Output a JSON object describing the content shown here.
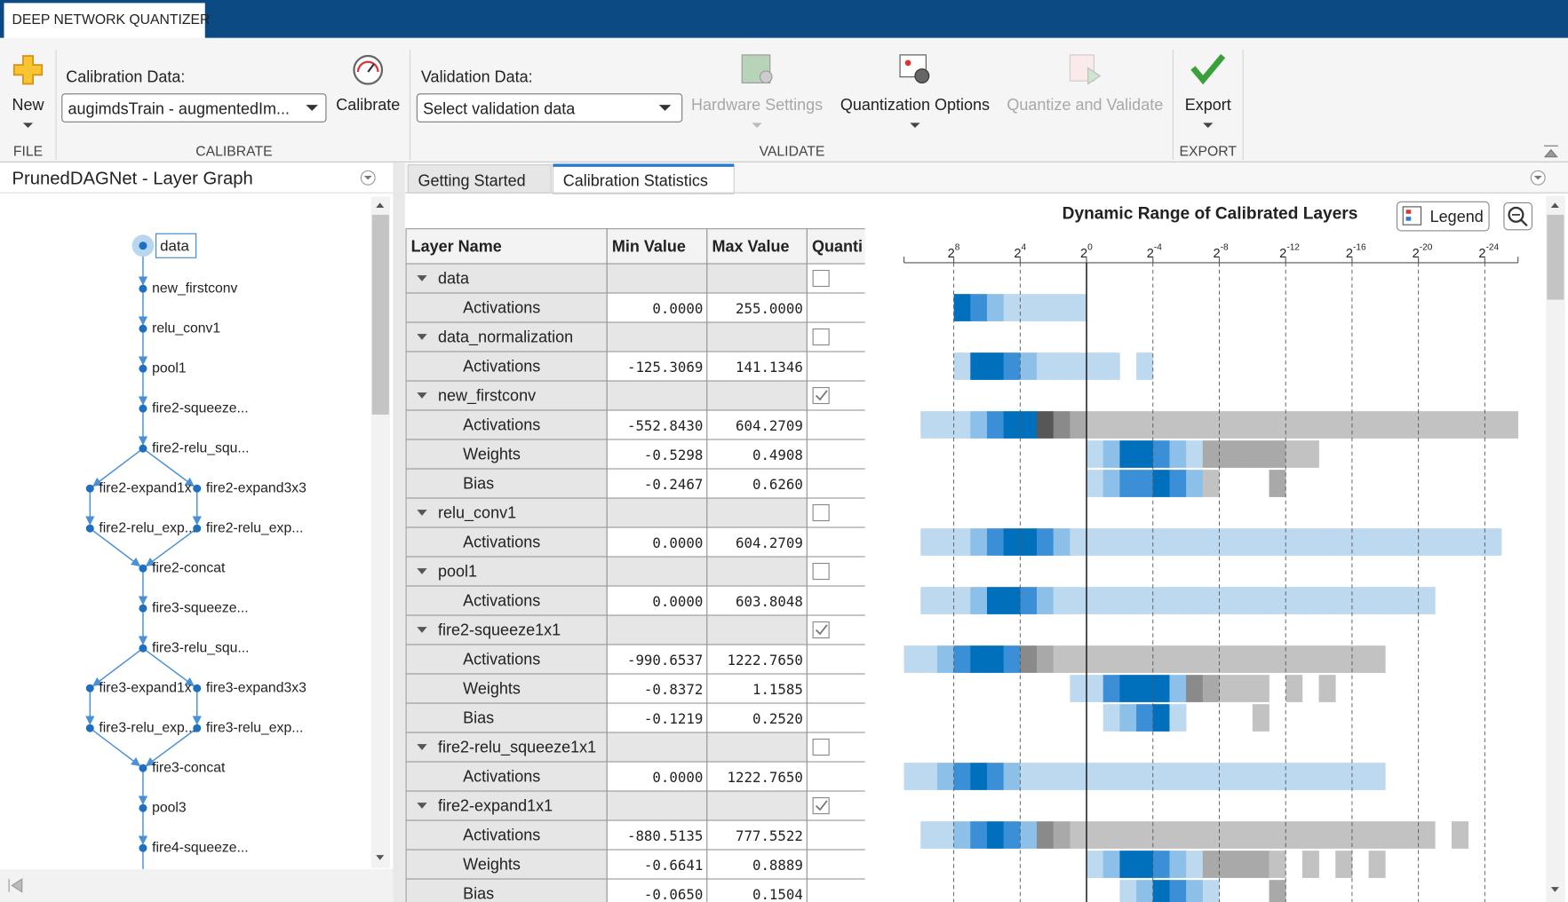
{
  "app_tab": "DEEP NETWORK QUANTIZER",
  "toolbar": {
    "new": "New",
    "calibration_data_label": "Calibration Data:",
    "calibration_data_value": "augimdsTrain - augmentedIm...",
    "calibrate": "Calibrate",
    "validation_data_label": "Validation Data:",
    "validation_data_value": "Select validation data",
    "hardware_settings": "Hardware Settings",
    "quantization_options": "Quantization Options",
    "quantize_and_validate": "Quantize and Validate",
    "export": "Export",
    "sections": [
      "FILE",
      "CALIBRATE",
      "VALIDATE",
      "EXPORT"
    ]
  },
  "layer_graph": {
    "title": "PrunedDAGNet - Layer Graph",
    "nodes": [
      "data",
      "new_firstconv",
      "relu_conv1",
      "pool1",
      "fire2-squeeze...",
      "fire2-relu_squ...",
      "fire2-expand1x",
      "fire2-expand3x3",
      "fire2-relu_exp...",
      "fire2-relu_exp...",
      "fire2-concat",
      "fire3-squeeze...",
      "fire3-relu_squ...",
      "fire3-expand1x",
      "fire3-expand3x3",
      "fire3-relu_exp...",
      "fire3-relu_exp...",
      "fire3-concat",
      "pool3",
      "fire4-squeeze..."
    ]
  },
  "tabs": [
    "Getting Started",
    "Calibration Statistics"
  ],
  "table": {
    "columns": [
      "Layer Name",
      "Min Value",
      "Max Value",
      "Quanti"
    ],
    "rows": [
      {
        "name": "data",
        "quantize": false
      },
      {
        "name": "Activations",
        "min": "0.0000",
        "max": "255.0000"
      },
      {
        "name": "data_normalization",
        "quantize": false
      },
      {
        "name": "Activations",
        "min": "-125.3069",
        "max": "141.1346"
      },
      {
        "name": "new_firstconv",
        "quantize": true
      },
      {
        "name": "Activations",
        "min": "-552.8430",
        "max": "604.2709"
      },
      {
        "name": "Weights",
        "min": "-0.5298",
        "max": "0.4908"
      },
      {
        "name": "Bias",
        "min": "-0.2467",
        "max": "0.6260"
      },
      {
        "name": "relu_conv1",
        "quantize": false
      },
      {
        "name": "Activations",
        "min": "0.0000",
        "max": "604.2709"
      },
      {
        "name": "pool1",
        "quantize": false
      },
      {
        "name": "Activations",
        "min": "0.0000",
        "max": "603.8048"
      },
      {
        "name": "fire2-squeeze1x1",
        "quantize": true
      },
      {
        "name": "Activations",
        "min": "-990.6537",
        "max": "1222.7650"
      },
      {
        "name": "Weights",
        "min": "-0.8372",
        "max": "1.1585"
      },
      {
        "name": "Bias",
        "min": "-0.1219",
        "max": "0.2520"
      },
      {
        "name": "fire2-relu_squeeze1x1",
        "quantize": false
      },
      {
        "name": "Activations",
        "min": "0.0000",
        "max": "1222.7650"
      },
      {
        "name": "fire2-expand1x1",
        "quantize": true
      },
      {
        "name": "Activations",
        "min": "-880.5135",
        "max": "777.5522"
      },
      {
        "name": "Weights",
        "min": "-0.6641",
        "max": "0.8889"
      },
      {
        "name": "Bias",
        "min": "-0.0650",
        "max": "0.1504"
      }
    ]
  },
  "chart_data": {
    "type": "heatmap",
    "title": "Dynamic Range of Calibrated Layers",
    "legend_button": "Legend",
    "tick_base": "2",
    "xlim": [
      11,
      -26
    ],
    "xticks": [
      8,
      4,
      0,
      -4,
      -8,
      -12,
      -16,
      -20,
      -24
    ],
    "colors": {
      "in_range": [
        "#bcd9f0",
        "#8cc0e8",
        "#3a8fd6",
        "#0070bd"
      ],
      "out_of_range": [
        "#c2c2c2",
        "#a9a9a9",
        "#8a8a8a",
        "#575757"
      ]
    },
    "rows": [
      null,
      {
        "start": 8,
        "levels": [
          4,
          3,
          2,
          1,
          1,
          1,
          1,
          1
        ]
      },
      null,
      {
        "start": 8,
        "levels": [
          1,
          4,
          4,
          3,
          2,
          1,
          1,
          1,
          1,
          1,
          0,
          1
        ]
      },
      null,
      {
        "start": 10,
        "threshold": 3,
        "levels": [
          1,
          1,
          1,
          2,
          3,
          4,
          4,
          4,
          3,
          2,
          1,
          1,
          1,
          1,
          1,
          1,
          1,
          1,
          1,
          1,
          1,
          1,
          1,
          1,
          1,
          1,
          1,
          1,
          1,
          1,
          1,
          1,
          1,
          1,
          1,
          1
        ]
      },
      {
        "start": 0,
        "threshold": -7,
        "levels": [
          1,
          2,
          4,
          4,
          3,
          2,
          1,
          2,
          2,
          2,
          2,
          2,
          1,
          1
        ]
      },
      {
        "start": 0,
        "threshold": -7,
        "levels": [
          1,
          2,
          3,
          3,
          4,
          3,
          2,
          1,
          0,
          0,
          0,
          2
        ]
      },
      null,
      {
        "start": 10,
        "levels": [
          1,
          1,
          1,
          2,
          3,
          4,
          4,
          3,
          2,
          1,
          1,
          1,
          1,
          1,
          1,
          1,
          1,
          1,
          1,
          1,
          1,
          1,
          1,
          1,
          1,
          1,
          1,
          1,
          1,
          1,
          1,
          1,
          1,
          1,
          1
        ]
      },
      null,
      {
        "start": 10,
        "levels": [
          1,
          1,
          1,
          2,
          4,
          4,
          3,
          2,
          1,
          1,
          1,
          1,
          1,
          1,
          1,
          1,
          1,
          1,
          1,
          1,
          1,
          1,
          1,
          1,
          1,
          1,
          1,
          1,
          1,
          1,
          1
        ]
      },
      null,
      {
        "start": 11,
        "threshold": 4,
        "levels": [
          1,
          1,
          2,
          3,
          4,
          4,
          3,
          3,
          2,
          1,
          1,
          1,
          1,
          1,
          1,
          1,
          1,
          1,
          1,
          1,
          1,
          1,
          1,
          1,
          1,
          1,
          1,
          1,
          1
        ]
      },
      {
        "start": 1,
        "threshold": -6,
        "levels": [
          1,
          1,
          3,
          4,
          4,
          4,
          2,
          3,
          2,
          1,
          1,
          1,
          0,
          1,
          0,
          1
        ]
      },
      {
        "start": -1,
        "threshold": -6,
        "levels": [
          1,
          2,
          3,
          4,
          1,
          0,
          0,
          0,
          0,
          1
        ]
      },
      null,
      {
        "start": 11,
        "levels": [
          1,
          1,
          2,
          3,
          4,
          3,
          2,
          1,
          1,
          1,
          1,
          1,
          1,
          1,
          1,
          1,
          1,
          1,
          1,
          1,
          1,
          1,
          1,
          1,
          1,
          1,
          1,
          1,
          1
        ]
      },
      null,
      {
        "start": 10,
        "threshold": 3,
        "levels": [
          1,
          1,
          2,
          3,
          4,
          3,
          2,
          3,
          2,
          1,
          1,
          1,
          1,
          1,
          1,
          1,
          1,
          1,
          1,
          1,
          1,
          1,
          1,
          1,
          1,
          1,
          1,
          1,
          1,
          1,
          1,
          0,
          1
        ]
      },
      {
        "start": 0,
        "threshold": -7,
        "levels": [
          1,
          2,
          4,
          4,
          3,
          2,
          1,
          2,
          2,
          2,
          2,
          1,
          0,
          1,
          0,
          1,
          0,
          1
        ]
      },
      {
        "start": -2,
        "threshold": -8,
        "levels": [
          1,
          2,
          4,
          3,
          2,
          1,
          0,
          0,
          0,
          2
        ]
      }
    ]
  }
}
